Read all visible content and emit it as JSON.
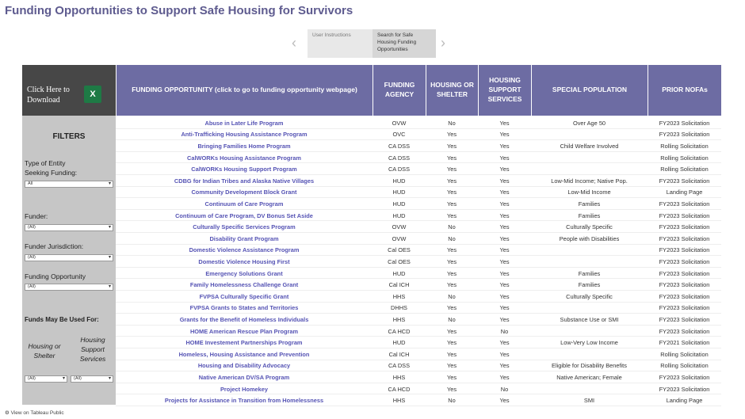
{
  "header": {
    "title": "Funding Opportunities to Support Safe Housing for Survivors"
  },
  "nav": {
    "tabs": [
      "User Instructions",
      "Search for Safe Housing Funding Opportunities"
    ]
  },
  "download": {
    "label": "Click Here to Download"
  },
  "table": {
    "columns": [
      "FUNDING OPPORTUNITY (click to go to funding opportunity webpage)",
      "FUNDING AGENCY",
      "HOUSING OR SHELTER",
      "HOUSING SUPPORT SERVICES",
      "SPECIAL POPULATION",
      "PRIOR NOFAs"
    ],
    "rows": [
      [
        "Abuse in Later Life Program",
        "OVW",
        "No",
        "Yes",
        "Over Age 50",
        "FY2023 Solicitation"
      ],
      [
        "Anti-Trafficking Housing Assistance Program",
        "OVC",
        "Yes",
        "Yes",
        null,
        "FY2023 Solicitation"
      ],
      [
        "Bringing Families Home Program",
        "CA DSS",
        "Yes",
        "Yes",
        "Child Welfare Involved",
        "Rolling Solicitation"
      ],
      [
        "CalWORKs Housing Assistance Program",
        "CA DSS",
        "Yes",
        "Yes",
        null,
        "Rolling Solicitation"
      ],
      [
        "CalWORKs Housing Support Program",
        "CA DSS",
        "Yes",
        "Yes",
        null,
        "Rolling Solicitation"
      ],
      [
        "CDBG for Indian Tribes and Alaska Native Villages",
        "HUD",
        "Yes",
        "Yes",
        "Low-Mid Income; Native Pop.",
        "FY2023 Solicitation"
      ],
      [
        "Community Development Block Grant",
        "HUD",
        "Yes",
        "Yes",
        "Low-Mid Income",
        "Landing Page"
      ],
      [
        "Continuum of Care Program",
        "HUD",
        "Yes",
        "Yes",
        "Families",
        "FY2023 Solicitation"
      ],
      [
        "Continuum of Care Program, DV Bonus Set Aside",
        "HUD",
        "Yes",
        "Yes",
        "Families",
        "FY2023 Solicitation"
      ],
      [
        "Culturally Specific Services Program",
        "OVW",
        "No",
        "Yes",
        "Culturally Specific",
        "FY2023 Solicitation"
      ],
      [
        "Disability Grant Program",
        "OVW",
        "No",
        "Yes",
        "People with Disabilities",
        "FY2023 Solicitation"
      ],
      [
        "Domestic Violence Assistance Program",
        "Cal OES",
        "Yes",
        "Yes",
        null,
        "FY2023 Solicitation"
      ],
      [
        "Domestic Violence Housing First",
        "Cal OES",
        "Yes",
        "Yes",
        null,
        "FY2023 Solicitation"
      ],
      [
        "Emergency Solutions Grant",
        "HUD",
        "Yes",
        "Yes",
        "Families",
        "FY2023 Solicitation"
      ],
      [
        "Family Homelessness Challenge Grant",
        "Cal ICH",
        "Yes",
        "Yes",
        "Families",
        "FY2023 Solicitation"
      ],
      [
        "FVPSA Culturally Specific Grant",
        "HHS",
        "No",
        "Yes",
        "Culturally Specific",
        "FY2023 Solicitation"
      ],
      [
        "FVPSA Grants to States and Territories",
        "DHHS",
        "Yes",
        "Yes",
        null,
        "FY2023 Solicitation"
      ],
      [
        "Grants for the Benefit of Homeless Individuals",
        "HHS",
        "No",
        "Yes",
        "Substance Use or SMI",
        "FY2023 Solicitation"
      ],
      [
        "HOME American Rescue Plan Program",
        "CA HCD",
        "Yes",
        "No",
        null,
        "FY2023 Solicitation"
      ],
      [
        "HOME Investement Partnerships Program",
        "HUD",
        "Yes",
        "Yes",
        "Low-Very Low Income",
        "FY2021 Solicitation"
      ],
      [
        "Homeless, Housing Assistance and Prevention",
        "Cal ICH",
        "Yes",
        "Yes",
        null,
        "Rolling Solicitation"
      ],
      [
        "Housing and Disability Advocacy",
        "CA DSS",
        "Yes",
        "Yes",
        "Eligible for Disability Benefits",
        "Rolling Solicitation"
      ],
      [
        "Native American DV/SA Program",
        "HHS",
        "Yes",
        "Yes",
        "Native American; Female",
        "FY2023 Solicitation"
      ],
      [
        "Project Homekey",
        "CA HCD",
        "Yes",
        "No",
        null,
        "FY2023 Solicitation"
      ],
      [
        "Projects for Assistance in Transition from Homelessness",
        "HHS",
        "No",
        "Yes",
        "SMI",
        "Landing Page"
      ]
    ]
  },
  "filters": {
    "heading": "FILTERS",
    "items": [
      {
        "label": "Type of Entity Seeking Funding:",
        "value": "All"
      },
      {
        "label": "Funder:",
        "value": "(All)"
      },
      {
        "label": "Funder Jurisdiction:",
        "value": "(All)"
      },
      {
        "label": "Funding Opportunity Type:",
        "value": "(All)"
      }
    ]
  },
  "funds_used": {
    "heading": "Funds May Be Used For:",
    "options": [
      {
        "label": "Housing or Shelter",
        "value": "(All)"
      },
      {
        "label": "Housing Support Services",
        "value": "(All)"
      }
    ]
  },
  "footer": {
    "link": "View on Tableau Public"
  }
}
